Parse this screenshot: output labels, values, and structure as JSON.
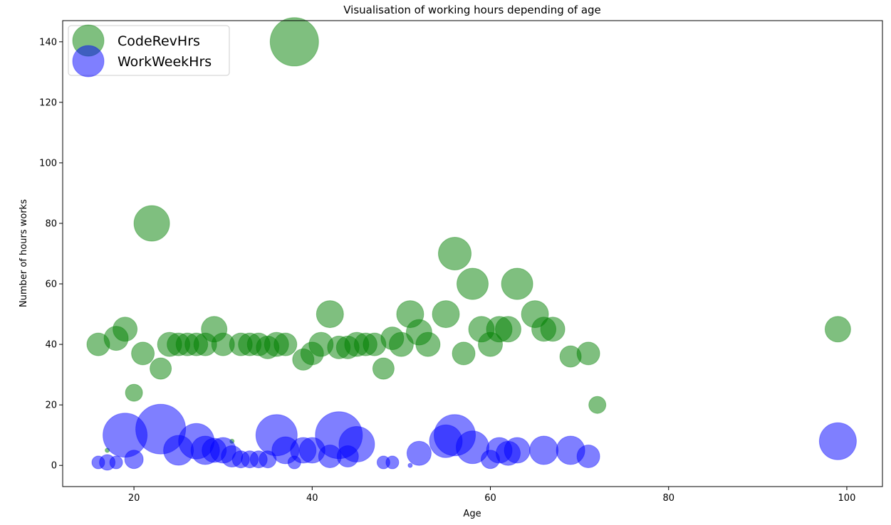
{
  "chart_data": {
    "type": "scatter",
    "title": "Visualisation of working hours depending of age",
    "xlabel": "Age",
    "ylabel": "Number of hours works",
    "xlim": [
      12,
      104
    ],
    "ylim": [
      -7,
      147
    ],
    "x_ticks": [
      20,
      40,
      60,
      80,
      100
    ],
    "y_ticks": [
      0,
      20,
      40,
      60,
      80,
      100,
      120,
      140
    ],
    "grid": false,
    "legend_position": "top-left",
    "size_note": "marker area proportional to a third variable",
    "series": [
      {
        "name": "CodeRevHrs",
        "color": "#008000",
        "opacity": 0.5,
        "points": [
          [
            16,
            40,
            16
          ],
          [
            18,
            42,
            17
          ],
          [
            19,
            45,
            17
          ],
          [
            20,
            24,
            12
          ],
          [
            21,
            37,
            16
          ],
          [
            22,
            80,
            25
          ],
          [
            23,
            32,
            15
          ],
          [
            24,
            40,
            17
          ],
          [
            25,
            40,
            16
          ],
          [
            26,
            40,
            16
          ],
          [
            27,
            40,
            16
          ],
          [
            28,
            40,
            16
          ],
          [
            29,
            45,
            18
          ],
          [
            30,
            40,
            16
          ],
          [
            31,
            8,
            3
          ],
          [
            32,
            40,
            16
          ],
          [
            33,
            40,
            16
          ],
          [
            34,
            40,
            16
          ],
          [
            35,
            39,
            16
          ],
          [
            36,
            40,
            17
          ],
          [
            37,
            40,
            16
          ],
          [
            39,
            35,
            15
          ],
          [
            40,
            37,
            16
          ],
          [
            41,
            40,
            17
          ],
          [
            42,
            50,
            19
          ],
          [
            43,
            39,
            16
          ],
          [
            44,
            39,
            16
          ],
          [
            45,
            40,
            17
          ],
          [
            46,
            40,
            16
          ],
          [
            47,
            40,
            16
          ],
          [
            48,
            32,
            15
          ],
          [
            49,
            42,
            16
          ],
          [
            50,
            40,
            17
          ],
          [
            51,
            50,
            19
          ],
          [
            52,
            44,
            18
          ],
          [
            53,
            40,
            17
          ],
          [
            55,
            50,
            19
          ],
          [
            56,
            70,
            23
          ],
          [
            57,
            37,
            16
          ],
          [
            58,
            60,
            22
          ],
          [
            59,
            45,
            18
          ],
          [
            60,
            40,
            17
          ],
          [
            61,
            45,
            18
          ],
          [
            62,
            45,
            18
          ],
          [
            63,
            60,
            22
          ],
          [
            65,
            50,
            19
          ],
          [
            66,
            45,
            17
          ],
          [
            67,
            45,
            17
          ],
          [
            69,
            36,
            15
          ],
          [
            71,
            37,
            16
          ],
          [
            72,
            20,
            12
          ],
          [
            99,
            45,
            18
          ],
          [
            38,
            140,
            34
          ],
          [
            17,
            5,
            3
          ]
        ]
      },
      {
        "name": "WorkWeekHrs",
        "color": "#0000ff",
        "opacity": 0.5,
        "points": [
          [
            16,
            1,
            9
          ],
          [
            17,
            1,
            11
          ],
          [
            18,
            1,
            9
          ],
          [
            19,
            10,
            31
          ],
          [
            20,
            2,
            13
          ],
          [
            23,
            12,
            35
          ],
          [
            25,
            5,
            21
          ],
          [
            27,
            8,
            25
          ],
          [
            28,
            5,
            20
          ],
          [
            29,
            5,
            17
          ],
          [
            30,
            5,
            18
          ],
          [
            31,
            3,
            15
          ],
          [
            32,
            2,
            12
          ],
          [
            33,
            2,
            12
          ],
          [
            34,
            2,
            12
          ],
          [
            35,
            2,
            12
          ],
          [
            36,
            10,
            29
          ],
          [
            37,
            5,
            19
          ],
          [
            38,
            1,
            9
          ],
          [
            39,
            5,
            18
          ],
          [
            40,
            5,
            18
          ],
          [
            42,
            3,
            16
          ],
          [
            43,
            10,
            33
          ],
          [
            44,
            3,
            15
          ],
          [
            45,
            7,
            25
          ],
          [
            48,
            1,
            9
          ],
          [
            49,
            1,
            9
          ],
          [
            51,
            0,
            3
          ],
          [
            52,
            4,
            17
          ],
          [
            55,
            8,
            23
          ],
          [
            56,
            10,
            29
          ],
          [
            58,
            6,
            23
          ],
          [
            60,
            2,
            13
          ],
          [
            61,
            5,
            18
          ],
          [
            62,
            4,
            17
          ],
          [
            63,
            5,
            18
          ],
          [
            66,
            5,
            20
          ],
          [
            69,
            5,
            20
          ],
          [
            71,
            3,
            16
          ],
          [
            99,
            8,
            26
          ]
        ]
      }
    ]
  }
}
